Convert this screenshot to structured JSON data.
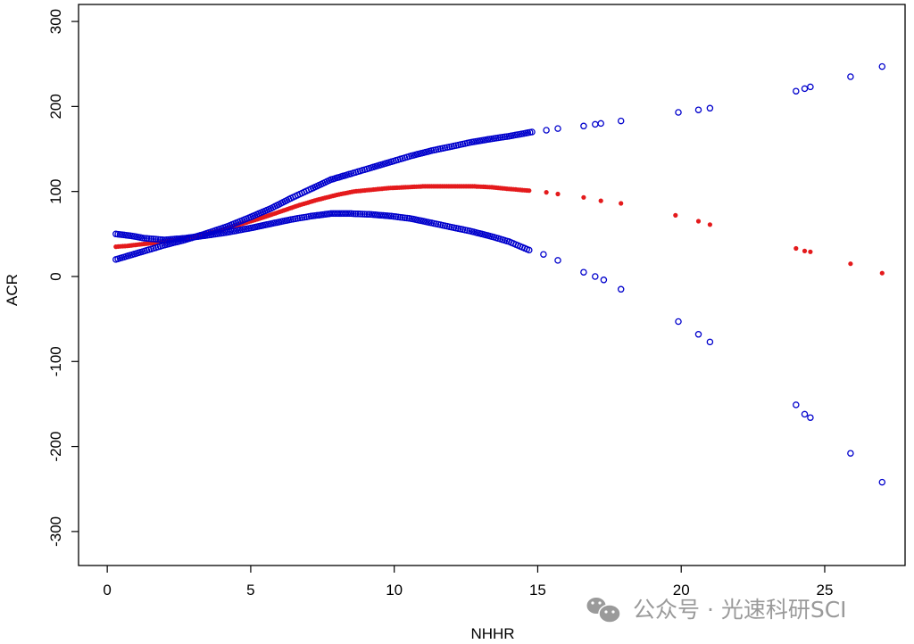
{
  "chart_data": {
    "type": "scatter",
    "title": "",
    "xlabel": "NHHR",
    "ylabel": "ACR",
    "xlim": [
      -1,
      27.8
    ],
    "ylim": [
      -340,
      320
    ],
    "x_ticks": [
      0,
      5,
      10,
      15,
      20,
      25
    ],
    "y_ticks": [
      -300,
      -200,
      -100,
      0,
      100,
      200,
      300
    ],
    "x_tick_labels": [
      "0",
      "5",
      "10",
      "15",
      "20",
      "25"
    ],
    "y_tick_labels": [
      "-300",
      "-200",
      "-100",
      "0",
      "100",
      "200",
      "300"
    ],
    "grid": false,
    "legend": "none",
    "colors": {
      "fit": "#e41a1c",
      "upper": "#0000cc",
      "lower": "#0000cc",
      "axis": "#000000"
    },
    "series": [
      {
        "marker": "filled-dot",
        "color": "#e41a1c",
        "points": [
          [
            0.3,
            35
          ],
          [
            0.7,
            36
          ],
          [
            1.2,
            38
          ],
          [
            1.8,
            40
          ],
          [
            2.5,
            44
          ],
          [
            3.2,
            48
          ],
          [
            4.0,
            55
          ],
          [
            4.7,
            62
          ],
          [
            5.3,
            68
          ],
          [
            6.0,
            76
          ],
          [
            6.7,
            84
          ],
          [
            7.3,
            90
          ],
          [
            8.0,
            96
          ],
          [
            8.6,
            100
          ],
          [
            9.2,
            102
          ],
          [
            9.8,
            104
          ],
          [
            10.4,
            105
          ],
          [
            11.0,
            106
          ],
          [
            11.6,
            106
          ],
          [
            12.2,
            106
          ],
          [
            12.8,
            106
          ],
          [
            13.4,
            105
          ],
          [
            14.0,
            103
          ],
          [
            14.7,
            101
          ],
          [
            15.3,
            99
          ],
          [
            15.7,
            97
          ],
          [
            16.6,
            93
          ],
          [
            17.2,
            89
          ],
          [
            17.9,
            86
          ],
          [
            19.8,
            72
          ],
          [
            20.6,
            65
          ],
          [
            21.0,
            61
          ],
          [
            24.0,
            33
          ],
          [
            24.3,
            30
          ],
          [
            24.5,
            29
          ],
          [
            25.9,
            15
          ],
          [
            27.0,
            4
          ]
        ]
      },
      {
        "marker": "open-circle",
        "color": "#0000cc",
        "points": [
          [
            0.3,
            20
          ],
          [
            0.8,
            25
          ],
          [
            1.3,
            30
          ],
          [
            2.0,
            37
          ],
          [
            2.7,
            43
          ],
          [
            3.4,
            50
          ],
          [
            4.2,
            59
          ],
          [
            5.0,
            70
          ],
          [
            5.7,
            80
          ],
          [
            6.4,
            92
          ],
          [
            7.1,
            103
          ],
          [
            7.8,
            114
          ],
          [
            8.5,
            121
          ],
          [
            9.2,
            128
          ],
          [
            9.9,
            135
          ],
          [
            10.6,
            142
          ],
          [
            11.3,
            148
          ],
          [
            12.0,
            153
          ],
          [
            12.7,
            158
          ],
          [
            13.4,
            162
          ],
          [
            14.0,
            165
          ],
          [
            14.8,
            170
          ],
          [
            15.3,
            172
          ],
          [
            15.7,
            174
          ],
          [
            16.6,
            177
          ],
          [
            17.0,
            179
          ],
          [
            17.2,
            180
          ],
          [
            17.9,
            183
          ],
          [
            19.9,
            193
          ],
          [
            20.6,
            196
          ],
          [
            21.0,
            198
          ],
          [
            24.0,
            218
          ],
          [
            24.3,
            221
          ],
          [
            24.5,
            223
          ],
          [
            25.9,
            235
          ],
          [
            27.0,
            247
          ]
        ]
      },
      {
        "marker": "open-circle",
        "color": "#0000cc",
        "points": [
          [
            0.3,
            50
          ],
          [
            0.8,
            48
          ],
          [
            1.3,
            45
          ],
          [
            2.0,
            43
          ],
          [
            2.7,
            45
          ],
          [
            3.4,
            48
          ],
          [
            4.2,
            52
          ],
          [
            5.0,
            57
          ],
          [
            5.7,
            62
          ],
          [
            6.4,
            67
          ],
          [
            7.1,
            71
          ],
          [
            7.8,
            74
          ],
          [
            8.5,
            74
          ],
          [
            9.2,
            73
          ],
          [
            9.9,
            71
          ],
          [
            10.6,
            68
          ],
          [
            11.3,
            63
          ],
          [
            12.0,
            58
          ],
          [
            12.7,
            53
          ],
          [
            13.4,
            47
          ],
          [
            14.0,
            41
          ],
          [
            14.7,
            31
          ],
          [
            15.2,
            26
          ],
          [
            15.7,
            19
          ],
          [
            16.6,
            5
          ],
          [
            17.0,
            0
          ],
          [
            17.3,
            -4
          ],
          [
            17.9,
            -15
          ],
          [
            19.9,
            -53
          ],
          [
            20.6,
            -68
          ],
          [
            21.0,
            -77
          ],
          [
            24.0,
            -151
          ],
          [
            24.3,
            -162
          ],
          [
            24.5,
            -166
          ],
          [
            25.9,
            -208
          ],
          [
            27.0,
            -242
          ]
        ]
      }
    ]
  },
  "watermark": {
    "text": "公众号 · 光速科研SCI",
    "icon": "wechat-icon"
  }
}
